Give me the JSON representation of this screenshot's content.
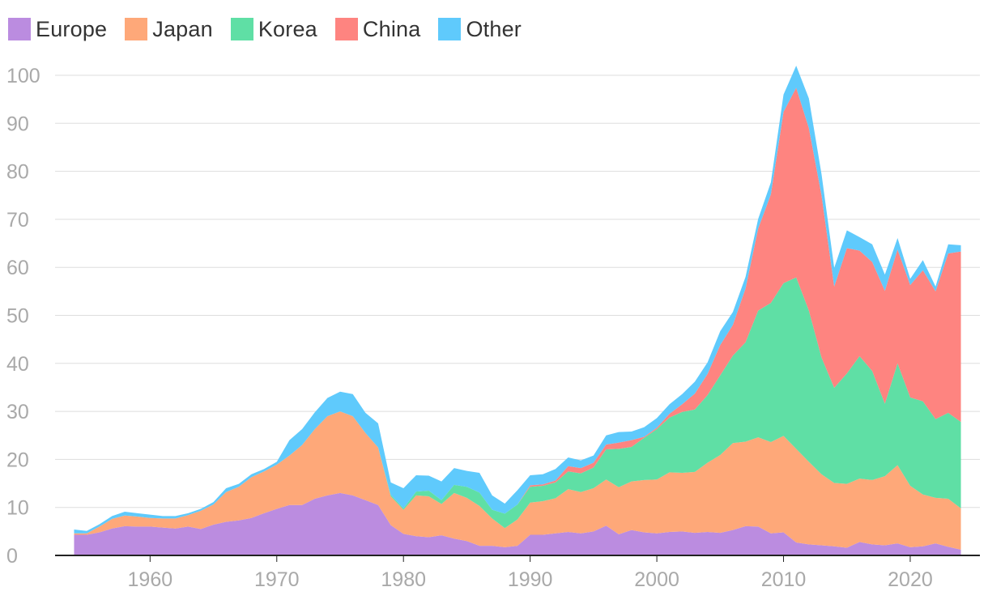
{
  "chart_data": {
    "type": "area",
    "stacked": true,
    "title": "",
    "xlabel": "",
    "ylabel": "",
    "xlim": [
      1952.5,
      2025.5
    ],
    "ylim": [
      0,
      100
    ],
    "x_ticks": [
      1960,
      1970,
      1980,
      1990,
      2000,
      2010,
      2020
    ],
    "y_ticks": [
      0,
      10,
      20,
      30,
      40,
      50,
      60,
      70,
      80,
      90,
      100
    ],
    "legend_position": "top-left",
    "grid": true,
    "x": [
      1954,
      1955,
      1956,
      1957,
      1958,
      1959,
      1960,
      1961,
      1962,
      1963,
      1964,
      1965,
      1966,
      1967,
      1968,
      1969,
      1970,
      1971,
      1972,
      1973,
      1974,
      1975,
      1976,
      1977,
      1978,
      1979,
      1980,
      1981,
      1982,
      1983,
      1984,
      1985,
      1986,
      1987,
      1988,
      1989,
      1990,
      1991,
      1992,
      1993,
      1994,
      1995,
      1996,
      1997,
      1998,
      1999,
      2000,
      2001,
      2002,
      2003,
      2004,
      2005,
      2006,
      2007,
      2008,
      2009,
      2010,
      2011,
      2012,
      2013,
      2014,
      2015,
      2016,
      2017,
      2018,
      2019,
      2020,
      2021,
      2022,
      2023,
      2024
    ],
    "series": [
      {
        "name": "Europe",
        "color": "#bb8ce0",
        "values": [
          4.3,
          4.3,
          4.8,
          5.6,
          6.1,
          6.0,
          6.0,
          5.8,
          5.6,
          6.0,
          5.5,
          6.4,
          7.0,
          7.3,
          7.8,
          8.8,
          9.7,
          10.5,
          10.5,
          11.8,
          12.5,
          13.0,
          12.5,
          11.5,
          10.5,
          6.3,
          4.5,
          4.0,
          3.8,
          4.2,
          3.5,
          3.0,
          2.0,
          2.0,
          1.7,
          2.0,
          4.3,
          4.3,
          4.6,
          4.9,
          4.6,
          5.0,
          6.2,
          4.4,
          5.3,
          4.8,
          4.6,
          4.9,
          5.0,
          4.7,
          4.9,
          4.7,
          5.3,
          6.1,
          6.0,
          4.6,
          4.8,
          2.7,
          2.3,
          2.1,
          1.9,
          1.6,
          2.8,
          2.3,
          2.1,
          2.5,
          1.7,
          1.9,
          2.5,
          1.8,
          1.2
        ]
      },
      {
        "name": "Japan",
        "color": "#fea879",
        "values": [
          0.3,
          0.3,
          1.2,
          2.0,
          2.2,
          2.1,
          1.8,
          1.9,
          2.1,
          2.4,
          3.8,
          4.2,
          6.2,
          7.0,
          8.5,
          8.7,
          9.2,
          10.3,
          12.5,
          14.5,
          16.5,
          17.0,
          16.5,
          14.0,
          12.0,
          6.0,
          5.0,
          8.5,
          8.5,
          6.5,
          9.5,
          9.0,
          8.3,
          5.7,
          4.0,
          5.5,
          6.7,
          7.0,
          7.3,
          8.9,
          8.6,
          9.0,
          9.6,
          9.8,
          10.1,
          10.9,
          11.2,
          12.4,
          12.2,
          12.7,
          14.4,
          16.2,
          18.1,
          17.6,
          18.6,
          19.0,
          20.1,
          19.5,
          17.2,
          14.8,
          13.2,
          13.3,
          13.2,
          13.4,
          14.4,
          16.3,
          12.8,
          10.8,
          9.5,
          10.0,
          8.6
        ]
      },
      {
        "name": "Korea",
        "color": "#5fdfa5",
        "values": [
          0,
          0,
          0,
          0,
          0,
          0,
          0,
          0,
          0,
          0,
          0,
          0,
          0,
          0,
          0,
          0,
          0,
          0,
          0,
          0,
          0,
          0,
          0,
          0,
          0,
          0.3,
          0.3,
          0.8,
          1.2,
          0.8,
          1.7,
          2.3,
          2.8,
          1.8,
          3.0,
          3.1,
          3.3,
          3.2,
          3.3,
          3.7,
          3.9,
          4.3,
          6.3,
          8.0,
          7.2,
          8.8,
          10.5,
          11.4,
          12.7,
          13.0,
          14.1,
          16.6,
          18.2,
          20.7,
          26.4,
          29.0,
          31.8,
          35.7,
          31.5,
          24.3,
          19.8,
          23.0,
          25.5,
          22.7,
          15.1,
          21.2,
          18.4,
          19.4,
          16.4,
          17.9,
          18.0
        ]
      },
      {
        "name": "China",
        "color": "#fe8480",
        "values": [
          0,
          0,
          0,
          0,
          0,
          0,
          0,
          0,
          0,
          0,
          0,
          0,
          0,
          0,
          0,
          0,
          0,
          0,
          0,
          0,
          0,
          0,
          0,
          0,
          0,
          0,
          0,
          0,
          0,
          0,
          0,
          0,
          0,
          0,
          0,
          0,
          0.3,
          0.3,
          0.4,
          1.1,
          1.1,
          1.0,
          1.0,
          1.3,
          1.4,
          0.2,
          0.3,
          0.8,
          1.6,
          3.3,
          4.4,
          6.3,
          6.4,
          11.2,
          17.1,
          22.6,
          35.7,
          39.5,
          38.0,
          33.8,
          21.1,
          26.1,
          22.0,
          22.7,
          23.5,
          23.7,
          23.4,
          27.3,
          26.6,
          33.2,
          35.5
        ]
      },
      {
        "name": "Other",
        "color": "#5fcafc",
        "values": [
          0.8,
          0.5,
          0.5,
          0.6,
          0.8,
          0.7,
          0.7,
          0.5,
          0.5,
          0.4,
          0.4,
          0.5,
          0.8,
          0.6,
          0.6,
          0.5,
          0.6,
          3.2,
          3.3,
          3.5,
          3.8,
          4.1,
          4.6,
          4.2,
          5.0,
          2.6,
          4.2,
          3.4,
          3.1,
          3.9,
          3.5,
          3.3,
          4.1,
          3.0,
          2.1,
          3.0,
          2.1,
          2.1,
          2.4,
          1.8,
          1.6,
          1.5,
          1.9,
          2.2,
          1.8,
          2.0,
          2.0,
          2.0,
          2.1,
          2.5,
          2.4,
          2.9,
          2.7,
          2.4,
          2.0,
          2.5,
          3.6,
          4.6,
          6.2,
          4.4,
          3.9,
          3.7,
          2.8,
          3.7,
          3.4,
          2.4,
          1.3,
          2.1,
          1.0,
          1.9,
          1.3
        ]
      }
    ]
  }
}
